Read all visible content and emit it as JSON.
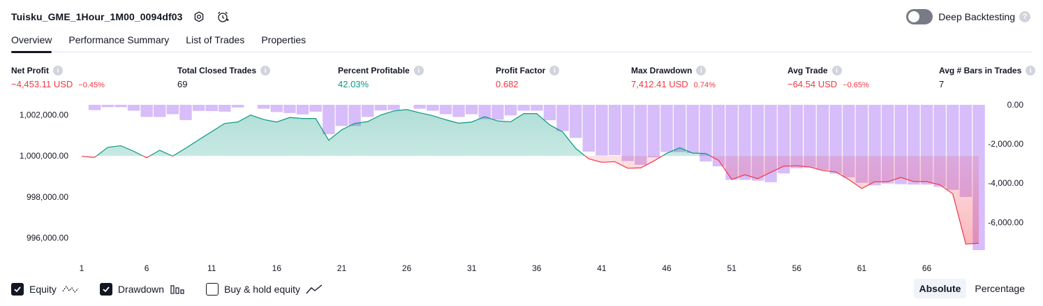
{
  "header": {
    "title": "Tuisku_GME_1Hour_1M00_0094df03",
    "deep_backtesting_label": "Deep Backtesting",
    "help_glyph": "?"
  },
  "tabs": [
    {
      "label": "Overview",
      "active": true
    },
    {
      "label": "Performance Summary",
      "active": false
    },
    {
      "label": "List of Trades",
      "active": false
    },
    {
      "label": "Properties",
      "active": false
    }
  ],
  "metrics": {
    "net_profit": {
      "label": "Net Profit",
      "value": "−4,453.11 USD",
      "pct": "−0.45%"
    },
    "total_closed_trades": {
      "label": "Total Closed Trades",
      "value": "69"
    },
    "percent_profitable": {
      "label": "Percent Profitable",
      "value": "42.03%"
    },
    "profit_factor": {
      "label": "Profit Factor",
      "value": "0.682"
    },
    "max_drawdown": {
      "label": "Max Drawdown",
      "value": "7,412.41 USD",
      "pct": "0.74%"
    },
    "avg_trade": {
      "label": "Avg Trade",
      "value": "−64.54 USD",
      "pct": "−0.65%"
    },
    "avg_bars": {
      "label": "Avg # Bars in Trades",
      "value": "7"
    }
  },
  "colors": {
    "positive": "#089981",
    "negative": "#f23645",
    "drawdown_bar": "#c9a7f7",
    "equity_fill_pos": "#089981",
    "equity_fill_neg": "#f23645"
  },
  "chart_data": {
    "type": "line+bar",
    "left_axis_ticks": [
      "1,002,000.00",
      "1,000,000.00",
      "998,000.00",
      "996,000.00"
    ],
    "left_axis_values": [
      1002000,
      1000000,
      998000,
      996000
    ],
    "right_axis_ticks": [
      "0.00",
      "-2,000.00",
      "-4,000.00",
      "-6,000.00"
    ],
    "right_axis_values": [
      0,
      -2000,
      -4000,
      -6000
    ],
    "x_ticks": [
      "1",
      "6",
      "11",
      "16",
      "21",
      "26",
      "31",
      "36",
      "41",
      "46",
      "51",
      "56",
      "61",
      "66"
    ],
    "baseline": 1000000,
    "equity_ylim": [
      995400,
      1002500
    ],
    "drawdown_ylim": [
      -7412.41,
      0
    ],
    "series": [
      {
        "name": "Equity",
        "type": "line",
        "x": [
          1,
          2,
          3,
          4,
          5,
          6,
          7,
          8,
          9,
          10,
          11,
          12,
          13,
          14,
          15,
          16,
          17,
          18,
          19,
          20,
          21,
          22,
          23,
          24,
          25,
          26,
          27,
          28,
          29,
          30,
          31,
          32,
          33,
          34,
          35,
          36,
          37,
          38,
          39,
          40,
          41,
          42,
          43,
          44,
          45,
          46,
          47,
          48,
          49,
          50,
          51,
          52,
          53,
          54,
          55,
          56,
          57,
          58,
          59,
          60,
          61,
          62,
          63,
          64,
          65,
          66,
          67,
          68,
          69,
          70
        ],
        "values": [
          999980,
          999930,
          1000420,
          1000500,
          1000230,
          999910,
          1000280,
          999990,
          1000380,
          1000790,
          1001190,
          1001590,
          1001660,
          1002000,
          1001780,
          1001660,
          1001880,
          1001830,
          1001830,
          1000770,
          1001280,
          1001590,
          1001680,
          1002000,
          1002200,
          1002270,
          1002110,
          1001970,
          1001770,
          1001600,
          1001660,
          1001920,
          1001710,
          1001670,
          1002070,
          1002070,
          1001520,
          1001170,
          1000370,
          999860,
          999690,
          999720,
          999400,
          999420,
          999750,
          1000130,
          1000400,
          1000140,
          1000120,
          999780,
          998850,
          999080,
          998890,
          999200,
          999500,
          999520,
          999460,
          999290,
          999220,
          998850,
          998410,
          998740,
          998740,
          998950,
          998750,
          998750,
          998590,
          998150,
          995700,
          995730
        ]
      },
      {
        "name": "Drawdown",
        "type": "bar",
        "values": [
          0,
          -270,
          -120,
          -120,
          -300,
          -620,
          -620,
          -480,
          -780,
          -310,
          -320,
          -350,
          -140,
          0,
          -200,
          -370,
          -420,
          -490,
          -350,
          -1500,
          -1080,
          -1080,
          -620,
          -290,
          -270,
          0,
          -200,
          -300,
          -480,
          -620,
          -480,
          -730,
          -760,
          -540,
          -300,
          -300,
          -790,
          -1340,
          -1690,
          -2390,
          -2590,
          -2570,
          -2870,
          -3060,
          -2680,
          -2410,
          -2410,
          -2460,
          -2890,
          -3140,
          -3830,
          -3830,
          -3870,
          -3950,
          -3500,
          -3240,
          -3200,
          -3320,
          -3510,
          -3700,
          -3980,
          -4110,
          -4020,
          -4050,
          -4070,
          -4070,
          -4190,
          -4340,
          -4700,
          -7412.41
        ]
      }
    ]
  },
  "legend": {
    "equity_label": "Equity",
    "drawdown_label": "Drawdown",
    "buyhold_label": "Buy & hold equity",
    "absolute_label": "Absolute",
    "percentage_label": "Percentage"
  }
}
